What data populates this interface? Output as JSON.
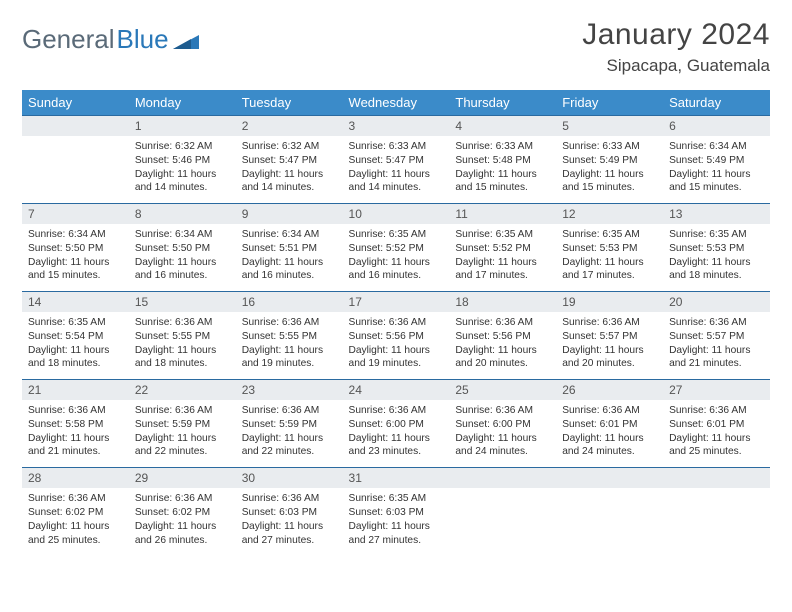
{
  "brand": {
    "word1": "General",
    "word2": "Blue"
  },
  "title": "January 2024",
  "location": "Sipacapa, Guatemala",
  "colors": {
    "header_bg": "#3b8bc9",
    "header_text": "#ffffff",
    "daynum_bg": "#e9ecef",
    "daynum_border": "#2a6aa0",
    "body_text": "#333333",
    "logo_gray": "#5a6a78",
    "logo_blue": "#2a78b8"
  },
  "day_headers": [
    "Sunday",
    "Monday",
    "Tuesday",
    "Wednesday",
    "Thursday",
    "Friday",
    "Saturday"
  ],
  "weeks": [
    [
      {
        "num": "",
        "sunrise": "",
        "sunset": "",
        "daylight": ""
      },
      {
        "num": "1",
        "sunrise": "Sunrise: 6:32 AM",
        "sunset": "Sunset: 5:46 PM",
        "daylight": "Daylight: 11 hours and 14 minutes."
      },
      {
        "num": "2",
        "sunrise": "Sunrise: 6:32 AM",
        "sunset": "Sunset: 5:47 PM",
        "daylight": "Daylight: 11 hours and 14 minutes."
      },
      {
        "num": "3",
        "sunrise": "Sunrise: 6:33 AM",
        "sunset": "Sunset: 5:47 PM",
        "daylight": "Daylight: 11 hours and 14 minutes."
      },
      {
        "num": "4",
        "sunrise": "Sunrise: 6:33 AM",
        "sunset": "Sunset: 5:48 PM",
        "daylight": "Daylight: 11 hours and 15 minutes."
      },
      {
        "num": "5",
        "sunrise": "Sunrise: 6:33 AM",
        "sunset": "Sunset: 5:49 PM",
        "daylight": "Daylight: 11 hours and 15 minutes."
      },
      {
        "num": "6",
        "sunrise": "Sunrise: 6:34 AM",
        "sunset": "Sunset: 5:49 PM",
        "daylight": "Daylight: 11 hours and 15 minutes."
      }
    ],
    [
      {
        "num": "7",
        "sunrise": "Sunrise: 6:34 AM",
        "sunset": "Sunset: 5:50 PM",
        "daylight": "Daylight: 11 hours and 15 minutes."
      },
      {
        "num": "8",
        "sunrise": "Sunrise: 6:34 AM",
        "sunset": "Sunset: 5:50 PM",
        "daylight": "Daylight: 11 hours and 16 minutes."
      },
      {
        "num": "9",
        "sunrise": "Sunrise: 6:34 AM",
        "sunset": "Sunset: 5:51 PM",
        "daylight": "Daylight: 11 hours and 16 minutes."
      },
      {
        "num": "10",
        "sunrise": "Sunrise: 6:35 AM",
        "sunset": "Sunset: 5:52 PM",
        "daylight": "Daylight: 11 hours and 16 minutes."
      },
      {
        "num": "11",
        "sunrise": "Sunrise: 6:35 AM",
        "sunset": "Sunset: 5:52 PM",
        "daylight": "Daylight: 11 hours and 17 minutes."
      },
      {
        "num": "12",
        "sunrise": "Sunrise: 6:35 AM",
        "sunset": "Sunset: 5:53 PM",
        "daylight": "Daylight: 11 hours and 17 minutes."
      },
      {
        "num": "13",
        "sunrise": "Sunrise: 6:35 AM",
        "sunset": "Sunset: 5:53 PM",
        "daylight": "Daylight: 11 hours and 18 minutes."
      }
    ],
    [
      {
        "num": "14",
        "sunrise": "Sunrise: 6:35 AM",
        "sunset": "Sunset: 5:54 PM",
        "daylight": "Daylight: 11 hours and 18 minutes."
      },
      {
        "num": "15",
        "sunrise": "Sunrise: 6:36 AM",
        "sunset": "Sunset: 5:55 PM",
        "daylight": "Daylight: 11 hours and 18 minutes."
      },
      {
        "num": "16",
        "sunrise": "Sunrise: 6:36 AM",
        "sunset": "Sunset: 5:55 PM",
        "daylight": "Daylight: 11 hours and 19 minutes."
      },
      {
        "num": "17",
        "sunrise": "Sunrise: 6:36 AM",
        "sunset": "Sunset: 5:56 PM",
        "daylight": "Daylight: 11 hours and 19 minutes."
      },
      {
        "num": "18",
        "sunrise": "Sunrise: 6:36 AM",
        "sunset": "Sunset: 5:56 PM",
        "daylight": "Daylight: 11 hours and 20 minutes."
      },
      {
        "num": "19",
        "sunrise": "Sunrise: 6:36 AM",
        "sunset": "Sunset: 5:57 PM",
        "daylight": "Daylight: 11 hours and 20 minutes."
      },
      {
        "num": "20",
        "sunrise": "Sunrise: 6:36 AM",
        "sunset": "Sunset: 5:57 PM",
        "daylight": "Daylight: 11 hours and 21 minutes."
      }
    ],
    [
      {
        "num": "21",
        "sunrise": "Sunrise: 6:36 AM",
        "sunset": "Sunset: 5:58 PM",
        "daylight": "Daylight: 11 hours and 21 minutes."
      },
      {
        "num": "22",
        "sunrise": "Sunrise: 6:36 AM",
        "sunset": "Sunset: 5:59 PM",
        "daylight": "Daylight: 11 hours and 22 minutes."
      },
      {
        "num": "23",
        "sunrise": "Sunrise: 6:36 AM",
        "sunset": "Sunset: 5:59 PM",
        "daylight": "Daylight: 11 hours and 22 minutes."
      },
      {
        "num": "24",
        "sunrise": "Sunrise: 6:36 AM",
        "sunset": "Sunset: 6:00 PM",
        "daylight": "Daylight: 11 hours and 23 minutes."
      },
      {
        "num": "25",
        "sunrise": "Sunrise: 6:36 AM",
        "sunset": "Sunset: 6:00 PM",
        "daylight": "Daylight: 11 hours and 24 minutes."
      },
      {
        "num": "26",
        "sunrise": "Sunrise: 6:36 AM",
        "sunset": "Sunset: 6:01 PM",
        "daylight": "Daylight: 11 hours and 24 minutes."
      },
      {
        "num": "27",
        "sunrise": "Sunrise: 6:36 AM",
        "sunset": "Sunset: 6:01 PM",
        "daylight": "Daylight: 11 hours and 25 minutes."
      }
    ],
    [
      {
        "num": "28",
        "sunrise": "Sunrise: 6:36 AM",
        "sunset": "Sunset: 6:02 PM",
        "daylight": "Daylight: 11 hours and 25 minutes."
      },
      {
        "num": "29",
        "sunrise": "Sunrise: 6:36 AM",
        "sunset": "Sunset: 6:02 PM",
        "daylight": "Daylight: 11 hours and 26 minutes."
      },
      {
        "num": "30",
        "sunrise": "Sunrise: 6:36 AM",
        "sunset": "Sunset: 6:03 PM",
        "daylight": "Daylight: 11 hours and 27 minutes."
      },
      {
        "num": "31",
        "sunrise": "Sunrise: 6:35 AM",
        "sunset": "Sunset: 6:03 PM",
        "daylight": "Daylight: 11 hours and 27 minutes."
      },
      {
        "num": "",
        "sunrise": "",
        "sunset": "",
        "daylight": ""
      },
      {
        "num": "",
        "sunrise": "",
        "sunset": "",
        "daylight": ""
      },
      {
        "num": "",
        "sunrise": "",
        "sunset": "",
        "daylight": ""
      }
    ]
  ]
}
